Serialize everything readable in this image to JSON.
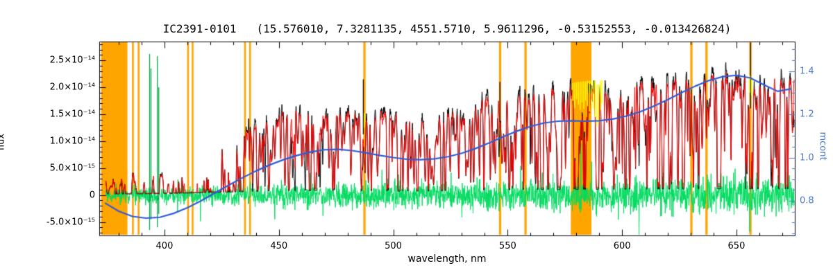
{
  "chart_data": {
    "type": "line",
    "title": "IC2391-0101   (15.576010, 7.3281135, 4551.5710, 5.9611296, -0.53152553, -0.013426824)",
    "axes": {
      "x": {
        "label": "wavelength, nm",
        "min": 371.5,
        "max": 675.5,
        "major_ticks": [
          400,
          450,
          500,
          550,
          600,
          650
        ],
        "tick_labels": [
          "400",
          "450",
          "500",
          "550",
          "600",
          "650"
        ],
        "minor_step": 10
      },
      "y_left": {
        "label": "flux",
        "min": -7.5e-15,
        "max": 2.85e-14,
        "major_ticks": [
          -5e-15,
          0,
          5e-15,
          1e-14,
          1.5e-14,
          2e-14,
          2.5e-14
        ],
        "tick_labels": [
          "-5.0×10⁻¹⁵",
          "0",
          "5.0×10⁻¹⁵",
          "1.0×10⁻¹⁴",
          "1.5×10⁻¹⁴",
          "2.0×10⁻¹⁴",
          "2.5×10⁻¹⁴"
        ],
        "minor_step": 1e-15
      },
      "y_right": {
        "label": "mcont",
        "min": 0.64,
        "max": 1.536,
        "major_ticks": [
          0.8,
          1.0,
          1.2,
          1.4
        ],
        "tick_labels": [
          "0.8",
          "1.0",
          "1.2",
          "1.4"
        ],
        "minor_step": 0.05
      }
    },
    "series": [
      {
        "name": "observed-spectrum",
        "color_key": "observed"
      },
      {
        "name": "template-fit-spectrum",
        "color_key": "template"
      },
      {
        "name": "residual",
        "color_key": "residual"
      },
      {
        "name": "continuum-mcont-curve",
        "color_key": "continuum"
      },
      {
        "name": "masked-wavelength-bands",
        "color_key": "masked"
      },
      {
        "name": "flagged-pixels",
        "color_key": "flagged"
      }
    ],
    "colors": {
      "observed": "#000000",
      "template": "#ff0000",
      "residual": "#00dc5f",
      "green_spike": "#00a844",
      "continuum": "#2e5cd6",
      "masked": "#ffa500",
      "flagged": "#ffff00",
      "axis_right": "#4a7ac8",
      "axis": "#000000",
      "background": "#ffffff"
    },
    "masked_regions": [
      [
        372.3,
        383.8
      ],
      [
        385.8,
        386.6
      ],
      [
        388.3,
        389.1
      ],
      [
        409.9,
        410.7
      ],
      [
        411.9,
        412.7
      ],
      [
        434.8,
        435.6
      ],
      [
        437.0,
        437.8
      ],
      [
        486.9,
        487.9
      ],
      [
        546.2,
        547.2
      ],
      [
        557.3,
        558.3
      ],
      [
        577.6,
        586.6
      ],
      [
        629.8,
        630.8
      ],
      [
        636.4,
        637.4
      ],
      [
        655.6,
        656.6
      ]
    ],
    "flux_envelope": {
      "y_scale": 1e-15,
      "x": [
        375,
        380,
        385,
        390,
        395,
        400,
        405,
        410,
        415,
        420,
        425,
        430,
        435,
        440,
        445,
        450,
        455,
        460,
        465,
        470,
        475,
        480,
        485,
        490,
        495,
        500,
        505,
        510,
        515,
        520,
        525,
        530,
        535,
        540,
        545,
        550,
        555,
        560,
        565,
        570,
        575,
        580,
        585,
        590,
        595,
        600,
        605,
        610,
        615,
        620,
        625,
        630,
        635,
        640,
        645,
        650,
        655,
        660,
        665,
        670,
        675
      ],
      "y_1e15": [
        3.6,
        4.3,
        4.1,
        4.7,
        5.1,
        5.8,
        6.5,
        7.3,
        8.3,
        9.3,
        10.4,
        11.4,
        12.4,
        13.5,
        14.5,
        15.3,
        16.0,
        16.4,
        16.3,
        16.0,
        15.7,
        15.5,
        15.6,
        15.8,
        15.6,
        15.2,
        14.7,
        14.3,
        14.4,
        15.2,
        16.2,
        17.1,
        17.8,
        18.4,
        18.8,
        19.0,
        19.2,
        19.4,
        19.7,
        20.0,
        20.3,
        20.5,
        20.6,
        20.5,
        20.4,
        20.5,
        20.8,
        21.2,
        21.5,
        21.7,
        21.9,
        22.2,
        22.5,
        22.8,
        23.0,
        22.8,
        22.4,
        22.1,
        22.2,
        22.4,
        22.3
      ]
    },
    "absorption_lines": [
      [
        383.5,
        0.5,
        0.7
      ],
      [
        388.9,
        0.55,
        0.7
      ],
      [
        393.4,
        0.78,
        0.9
      ],
      [
        396.8,
        0.72,
        0.9
      ],
      [
        404.6,
        0.3,
        0.35
      ],
      [
        410.2,
        0.5,
        0.6
      ],
      [
        422.7,
        0.45,
        0.4
      ],
      [
        430.8,
        0.45,
        0.8
      ],
      [
        434.0,
        0.55,
        0.6
      ],
      [
        438.4,
        0.4,
        0.5
      ],
      [
        486.1,
        0.5,
        0.6
      ],
      [
        517.0,
        0.5,
        1.6
      ],
      [
        527.0,
        0.35,
        0.5
      ],
      [
        589.0,
        0.6,
        0.5
      ],
      [
        589.6,
        0.55,
        0.45
      ],
      [
        616.2,
        0.3,
        0.4
      ],
      [
        656.3,
        0.55,
        0.8
      ]
    ],
    "mcont_curve": {
      "x": [
        374,
        380,
        386,
        392,
        398,
        404,
        410,
        416,
        422,
        428,
        434,
        440,
        446,
        452,
        458,
        464,
        470,
        476,
        482,
        488,
        494,
        500,
        506,
        512,
        518,
        524,
        530,
        536,
        542,
        548,
        554,
        560,
        566,
        572,
        578,
        584,
        590,
        596,
        602,
        608,
        614,
        620,
        626,
        632,
        638,
        644,
        650,
        656,
        662,
        668,
        674
      ],
      "y": [
        0.79,
        0.752,
        0.728,
        0.72,
        0.724,
        0.742,
        0.768,
        0.8,
        0.836,
        0.872,
        0.906,
        0.938,
        0.966,
        0.99,
        1.01,
        1.026,
        1.036,
        1.038,
        1.032,
        1.022,
        1.01,
        1.0,
        0.992,
        0.99,
        0.994,
        1.004,
        1.02,
        1.042,
        1.068,
        1.096,
        1.122,
        1.144,
        1.16,
        1.168,
        1.17,
        1.168,
        1.17,
        1.178,
        1.192,
        1.212,
        1.238,
        1.268,
        1.3,
        1.33,
        1.356,
        1.374,
        1.38,
        1.368,
        1.336,
        1.306,
        1.318
      ]
    },
    "residual": {
      "mean": 0,
      "amplitude_1e15": 1.15
    },
    "green_spikes_1e15": [
      [
        393.5,
        -6.5,
        26.2
      ],
      [
        394.1,
        -4.5,
        23.5
      ],
      [
        396.9,
        -6.0,
        25.8
      ],
      [
        397.5,
        -3.5,
        20.0
      ]
    ],
    "yellow_segments_1e15": [
      [
        578.5,
        17.5,
        20.8
      ],
      [
        579.3,
        16.2,
        20.9
      ],
      [
        580.1,
        17.8,
        21.0
      ],
      [
        580.9,
        16.8,
        21.0
      ],
      [
        581.7,
        15.8,
        21.0
      ],
      [
        582.5,
        17.2,
        21.1
      ],
      [
        583.3,
        16.0,
        21.1
      ],
      [
        584.1,
        17.5,
        21.1
      ],
      [
        584.9,
        16.5,
        21.2
      ],
      [
        585.7,
        15.5,
        21.2
      ],
      [
        586.5,
        17.0,
        21.2
      ],
      [
        587.3,
        16.0,
        21.2
      ],
      [
        588.2,
        14.5,
        21.3
      ],
      [
        589.0,
        12.8,
        20.5
      ],
      [
        589.7,
        13.5,
        20.6
      ],
      [
        590.5,
        15.8,
        21.3
      ],
      [
        591.2,
        17.0,
        21.3
      ],
      [
        487.3,
        12.5,
        15.2
      ],
      [
        655.8,
        19.0,
        22.2
      ],
      [
        656.6,
        18.5,
        21.8
      ]
    ],
    "emission_spikes_1e15": [
      [
        486.9,
        21.5
      ],
      [
        546.6,
        21.0
      ],
      [
        656.15,
        28.3
      ]
    ]
  }
}
